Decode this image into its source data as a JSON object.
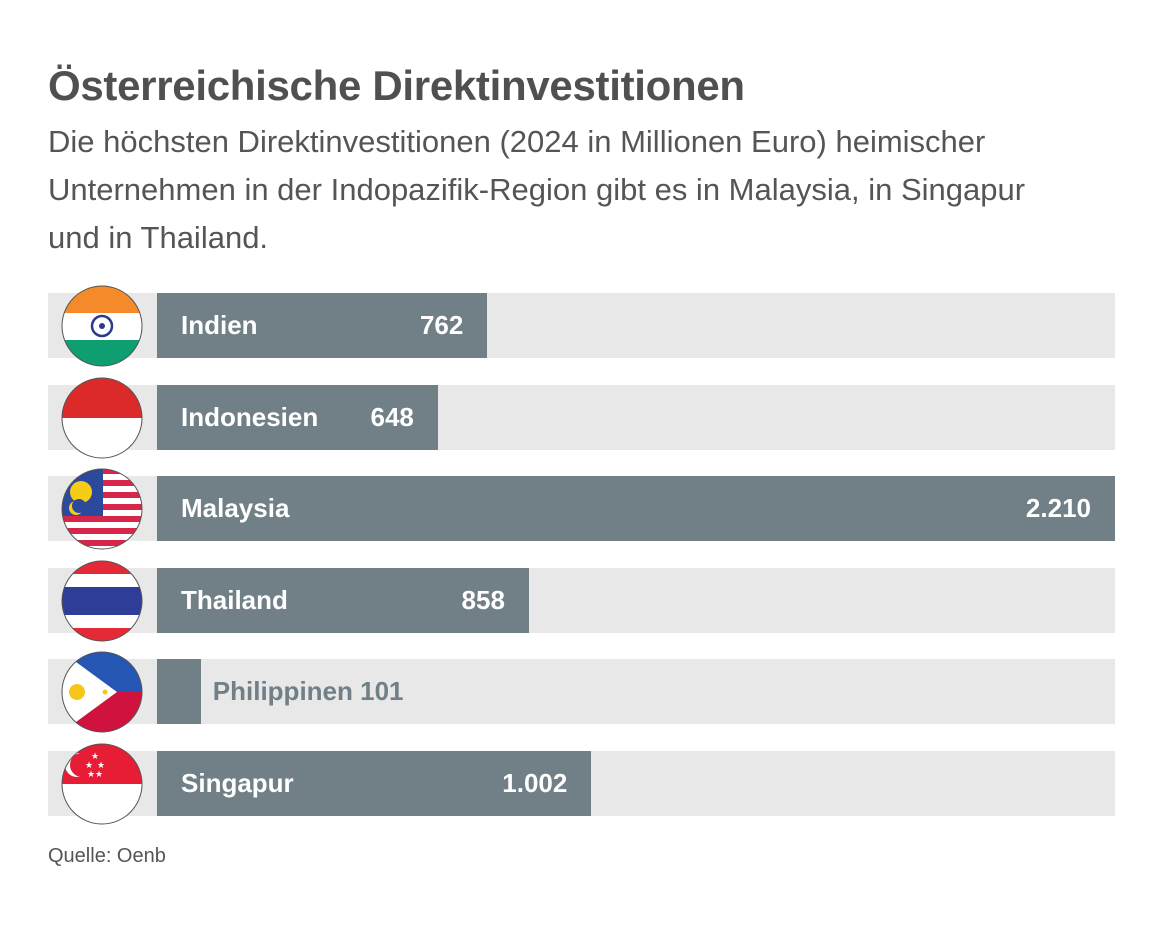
{
  "header": {
    "title": "Österreichische Direktinvestitionen",
    "subtitle": "Die höchsten Direktinvestitionen (2024 in Millionen Euro) heimischer Unternehmen in der Indopazifik-Region gibt es in Malaysia, in Singapur und in Thailand."
  },
  "footer": {
    "source": "Quelle: Oenb"
  },
  "colors": {
    "bar": "#717f87",
    "track": "#e8e8e8",
    "text": "#555555"
  },
  "chart_data": {
    "type": "bar",
    "orientation": "horizontal",
    "title": "Österreichische Direktinvestitionen",
    "subtitle": "Die höchsten Direktinvestitionen (2024 in Millionen Euro) heimischer Unternehmen in der Indopazifik-Region gibt es in Malaysia, in Singapur und in Thailand.",
    "xlabel": "",
    "ylabel": "",
    "unit": "Millionen Euro",
    "xlim": [
      0,
      2210
    ],
    "grid": false,
    "categories": [
      "Indien",
      "Indonesien",
      "Malaysia",
      "Thailand",
      "Philippinen",
      "Singapur"
    ],
    "values": [
      762,
      648,
      2210,
      858,
      101,
      1002
    ],
    "value_labels": [
      "762",
      "648",
      "2.210",
      "858",
      "101",
      "1.002"
    ],
    "flags": [
      "india-flag",
      "indonesia-flag",
      "malaysia-flag",
      "thailand-flag",
      "philippines-flag",
      "singapore-flag"
    ],
    "source": "Quelle: Oenb"
  }
}
